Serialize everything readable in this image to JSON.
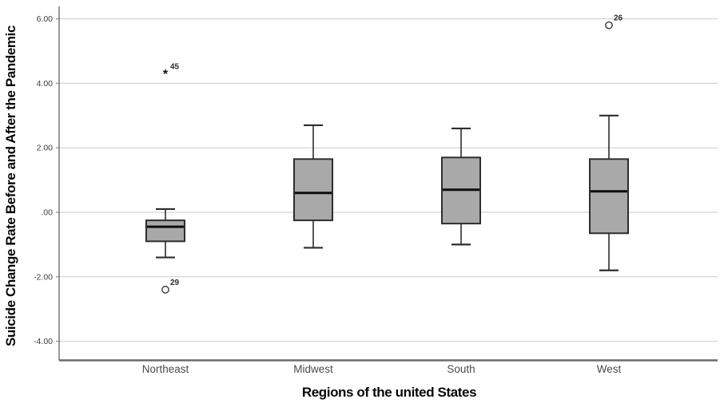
{
  "chart_data": {
    "type": "boxplot",
    "title": "",
    "xlabel": "Regions of the united States",
    "ylabel": "Suicide Change Rate Before and After the Pandemic",
    "categories": [
      "Northeast",
      "Midwest",
      "South",
      "West"
    ],
    "yticks": [
      {
        "value": 6,
        "label": "6.00"
      },
      {
        "value": 4,
        "label": "4.00"
      },
      {
        "value": 2,
        "label": "2.00"
      },
      {
        "value": 0,
        "label": ".00"
      },
      {
        "value": -2,
        "label": "-2.00"
      },
      {
        "value": -4,
        "label": "-4.00"
      }
    ],
    "ylim": [
      -4.6,
      6.4
    ],
    "grid": true,
    "legend": "none",
    "series": [
      {
        "category": "Northeast",
        "whisker_low": -1.4,
        "q1": -0.9,
        "median": -0.45,
        "q3": -0.25,
        "whisker_high": 0.1,
        "outliers": [
          {
            "value": -2.4,
            "label": "29",
            "marker": "circle"
          },
          {
            "value": 4.3,
            "label": "45",
            "marker": "asterisk"
          }
        ]
      },
      {
        "category": "Midwest",
        "whisker_low": -1.1,
        "q1": -0.25,
        "median": 0.6,
        "q3": 1.65,
        "whisker_high": 2.7,
        "outliers": []
      },
      {
        "category": "South",
        "whisker_low": -1.0,
        "q1": -0.35,
        "median": 0.7,
        "q3": 1.7,
        "whisker_high": 2.6,
        "outliers": []
      },
      {
        "category": "West",
        "whisker_low": -1.8,
        "q1": -0.65,
        "median": 0.65,
        "q3": 1.65,
        "whisker_high": 3.0,
        "outliers": [
          {
            "value": 5.8,
            "label": "26",
            "marker": "circle"
          }
        ]
      }
    ],
    "colors": {
      "box_fill": "#a9a9a9",
      "box_border": "#2e2e2e",
      "median": "#0d0d0d",
      "gridline": "#cbcbcb",
      "axis": "#8c8c8c",
      "bottom_axis": "#6b6b6b",
      "tick_text": "#3d3d3d",
      "category_text": "#4a4a4a",
      "title_text": "#070707",
      "outlier_stroke": "#3a3a3a",
      "background": "#ffffff"
    }
  }
}
